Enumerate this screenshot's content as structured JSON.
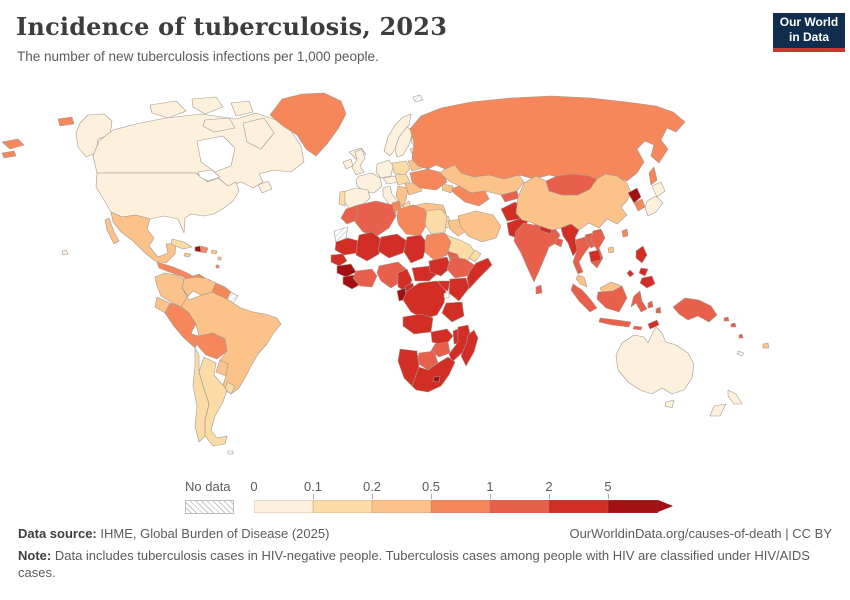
{
  "header": {
    "title": "Incidence of tuberculosis, 2023",
    "subtitle": "The number of new tuberculosis infections per 1,000 people."
  },
  "logo": {
    "line1": "Our World",
    "line2": "in Data",
    "navy": "#102d4e",
    "red": "#c5392f"
  },
  "footer": {
    "source_label": "Data source:",
    "source": "IHME, Global Burden of Disease (2025)",
    "attribution": "OurWorldinData.org/causes-of-death | CC BY",
    "note_label": "Note:",
    "note": "Data includes tuberculosis cases in HIV-negative people. Tuberculosis cases among people with HIV are classified under HIV/AIDS cases."
  },
  "chart_data": {
    "type": "choropleth",
    "title": "Incidence of tuberculosis, 2023",
    "unit": "new tuberculosis infections per 1,000 people",
    "year": 2023,
    "legend": {
      "no_data_label": "No data",
      "tick_labels": [
        "0",
        "0.1",
        "0.2",
        "0.5",
        "1",
        "2",
        "5"
      ],
      "bin_ranges": [
        "0-0.1",
        "0.1-0.2",
        "0.2-0.5",
        "0.5-1",
        "1-2",
        "2-5",
        "5+"
      ]
    },
    "bin_colors": [
      "#fdf0dc",
      "#fcdca6",
      "#fbc28a",
      "#f5875a",
      "#e8604b",
      "#d22e26",
      "#a31014"
    ],
    "no_data_style": "hatched",
    "regions": {
      "alaska": 0,
      "aleutian-islands": 3,
      "canada": 0,
      "newfoundland": 0,
      "greenland": 3,
      "iceland": 0,
      "usa": 0,
      "hawaii": 0,
      "mexico": 2,
      "baja-california": 2,
      "central-america": 3,
      "cuba": 1,
      "jamaica": 2,
      "haiti": 6,
      "dominican-republic": 3,
      "puerto-rico": 2,
      "lesser-antilles-1": 2,
      "lesser-antilles-2": 3,
      "colombia": 2,
      "venezuela": 2,
      "guyana-suriname": 3,
      "french-guiana": "nd",
      "ecuador": 2,
      "peru": 3,
      "bolivia": 3,
      "brazil": 2,
      "paraguay": 2,
      "uruguay": 1,
      "argentina": 1,
      "chile": 1,
      "falkland-islands": "nd",
      "ireland": 0,
      "uk": 0,
      "norway": 0,
      "sweden": 0,
      "finland": 0,
      "denmark": 0,
      "baltics": 1,
      "poland": 1,
      "germany": 0,
      "france": 0,
      "spain": 0,
      "portugal": 1,
      "italy": 0,
      "sicily": 0,
      "switzerland-austria": 0,
      "czech-hungary": 1,
      "balkans": 2,
      "romania": 2,
      "greece": 1,
      "belarus": 2,
      "ukraine": 3,
      "russia": 3,
      "russia-fragment-1": 3,
      "russia-fragment-2": 3,
      "sakhalin": 3,
      "svalbard": "nd",
      "kazakhstan": 2,
      "uzbekistan-turkmenistan": 3,
      "kyrgyzstan-tajikistan": 4,
      "caucasus": 2,
      "turkey": 2,
      "syria-levant": 1,
      "iraq": 2,
      "iran": 2,
      "saudi-arabia": 1,
      "yemen": 2,
      "oman": 1,
      "afghanistan": 5,
      "pakistan": 5,
      "india": 4,
      "nepal": 5,
      "bangladesh": 4,
      "sri-lanka": 4,
      "china": 2,
      "mongolia": 4,
      "north-korea": 6,
      "south-korea": 3,
      "japan-hokkaido": 0,
      "japan-honshu": 0,
      "taiwan": 3,
      "hainan": 2,
      "myanmar": 5,
      "thailand": 4,
      "laos": 4,
      "vietnam": 4,
      "cambodia": 5,
      "malaysia-peninsula": 2,
      "sumatra": 4,
      "borneo-malaysia": 2,
      "kalimantan": 4,
      "sulawesi": 4,
      "java": 4,
      "bali-lesser-sunda": 4,
      "timor": 5,
      "moluccas-1": 4,
      "moluccas-2": 4,
      "philippines-luzon": 5,
      "philippines-visayas": 5,
      "philippines-mindanao": 5,
      "palawan": 5,
      "new-guinea": 4,
      "solomon-1": 4,
      "solomon-2": 4,
      "vanuatu": 4,
      "fiji": 2,
      "new-caledonia": "nd",
      "australia": 0,
      "tasmania": 0,
      "nz-north": 0,
      "nz-south": 0,
      "morocco": 4,
      "western-sahara": "nd",
      "algeria": 4,
      "tunisia": 3,
      "libya": 3,
      "egypt": 1,
      "mauritania": 5,
      "mali": 5,
      "niger": 5,
      "chad": 5,
      "sudan": 3,
      "eritrea-djibouti": 4,
      "senegal": 5,
      "guinea": 6,
      "sierra-leone-liberia": 6,
      "ivory-coast-ghana": 4,
      "nigeria": 4,
      "cameroon": 5,
      "car": 5,
      "south-sudan": 5,
      "ethiopia": 4,
      "somalia": 5,
      "uganda": 5,
      "kenya": 5,
      "drc": 5,
      "gabon": 6,
      "congo": 5,
      "tanzania": 5,
      "angola": 5,
      "zambia": 5,
      "malawi": 5,
      "mozambique": 5,
      "zimbabwe": 4,
      "botswana": 4,
      "namibia": 5,
      "south-africa": 5,
      "lesotho": 6,
      "madagascar": 5
    }
  }
}
